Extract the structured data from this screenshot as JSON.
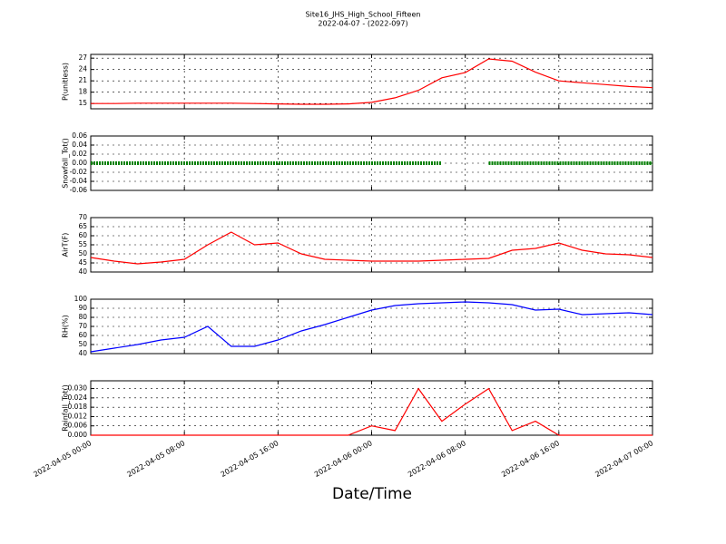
{
  "title": "Site16_JHS_High_School_Fifteen",
  "subtitle": "2022-04-07 - (2022-097)",
  "xlabel": "Date/Time",
  "xlim": [
    "2022-04-05 00:00",
    "2022-04-07 00:00"
  ],
  "xticks": [
    "2022-04-05 00:00",
    "2022-04-05 08:00",
    "2022-04-05 16:00",
    "2022-04-06 00:00",
    "2022-04-06 08:00",
    "2022-04-06 16:00",
    "2022-04-07 00:00"
  ],
  "x": [
    "2022-04-05 00:00",
    "2022-04-05 02:00",
    "2022-04-05 04:00",
    "2022-04-05 06:00",
    "2022-04-05 08:00",
    "2022-04-05 10:00",
    "2022-04-05 12:00",
    "2022-04-05 14:00",
    "2022-04-05 16:00",
    "2022-04-05 18:00",
    "2022-04-05 20:00",
    "2022-04-05 22:00",
    "2022-04-06 00:00",
    "2022-04-06 02:00",
    "2022-04-06 04:00",
    "2022-04-06 06:00",
    "2022-04-06 08:00",
    "2022-04-06 10:00",
    "2022-04-06 12:00",
    "2022-04-06 14:00",
    "2022-04-06 16:00",
    "2022-04-06 18:00",
    "2022-04-06 20:00",
    "2022-04-06 22:00",
    "2022-04-07 00:00"
  ],
  "chart_data": [
    {
      "type": "line",
      "ylabel": "P(unitless)",
      "ylim": [
        13.6,
        28
      ],
      "yticks": [
        15,
        18,
        21,
        24,
        27
      ],
      "grid": true,
      "series": [
        {
          "color": "#ff0000",
          "values": [
            15,
            15,
            15.1,
            15.1,
            15.1,
            15.1,
            15.1,
            15,
            14.9,
            14.8,
            14.8,
            14.9,
            15.3,
            16.5,
            18.5,
            21.8,
            23.2,
            26.8,
            26.2,
            23.3,
            21,
            20.5,
            20,
            19.5,
            19.2
          ]
        }
      ]
    },
    {
      "type": "line",
      "ylabel": "Snowfall_Tot()",
      "ylim": [
        -0.06,
        0.06
      ],
      "yticks": [
        -0.06,
        -0.04,
        -0.02,
        {
          "value": 0,
          "label": "0.00"
        },
        0.02,
        0.04,
        0.06
      ],
      "grid": true,
      "series": [
        {
          "color": "#008000",
          "values": [
            0,
            0,
            0,
            0,
            0,
            0,
            0,
            0,
            0,
            0,
            0,
            0,
            0,
            0,
            0,
            0,
            null,
            0,
            0,
            0,
            0,
            0,
            0,
            0,
            0
          ]
        }
      ]
    },
    {
      "type": "line",
      "ylabel": "AirT(F)",
      "ylim": [
        40,
        70
      ],
      "yticks": [
        40,
        45,
        50,
        55,
        60,
        65,
        70
      ],
      "grid": true,
      "series": [
        {
          "color": "#ff0000",
          "values": [
            48,
            46,
            44.5,
            45.5,
            47,
            55,
            62,
            55,
            56,
            50,
            47,
            46.5,
            46,
            46,
            46,
            46.5,
            47,
            47.5,
            52,
            53,
            56,
            52,
            50,
            49.5,
            48
          ]
        }
      ]
    },
    {
      "type": "line",
      "ylabel": "RH(%)",
      "ylim": [
        40,
        100
      ],
      "yticks": [
        40,
        50,
        60,
        70,
        80,
        90,
        100
      ],
      "grid": true,
      "series": [
        {
          "color": "#0000ff",
          "values": [
            42,
            46,
            50,
            55,
            58,
            70,
            48,
            48,
            55,
            65,
            72,
            80,
            88,
            93,
            95,
            96,
            97,
            96,
            94,
            88,
            89,
            83,
            84,
            85,
            83
          ]
        }
      ]
    },
    {
      "type": "line",
      "ylabel": "Rainfall_Tot()",
      "ylim": [
        0,
        0.035
      ],
      "yticks": [
        {
          "value": 0,
          "label": "0.000"
        },
        0.006,
        0.012,
        0.018,
        0.024,
        {
          "value": 0.03,
          "label": "0.030"
        }
      ],
      "grid": true,
      "series": [
        {
          "color": "#ff0000",
          "values": [
            0,
            0,
            0,
            0,
            0,
            0,
            0,
            0,
            0,
            0,
            0,
            0,
            0.006,
            0.003,
            0.03,
            0.009,
            0.02,
            0.03,
            0.003,
            0.009,
            0,
            0,
            0,
            0,
            0
          ]
        }
      ]
    }
  ]
}
